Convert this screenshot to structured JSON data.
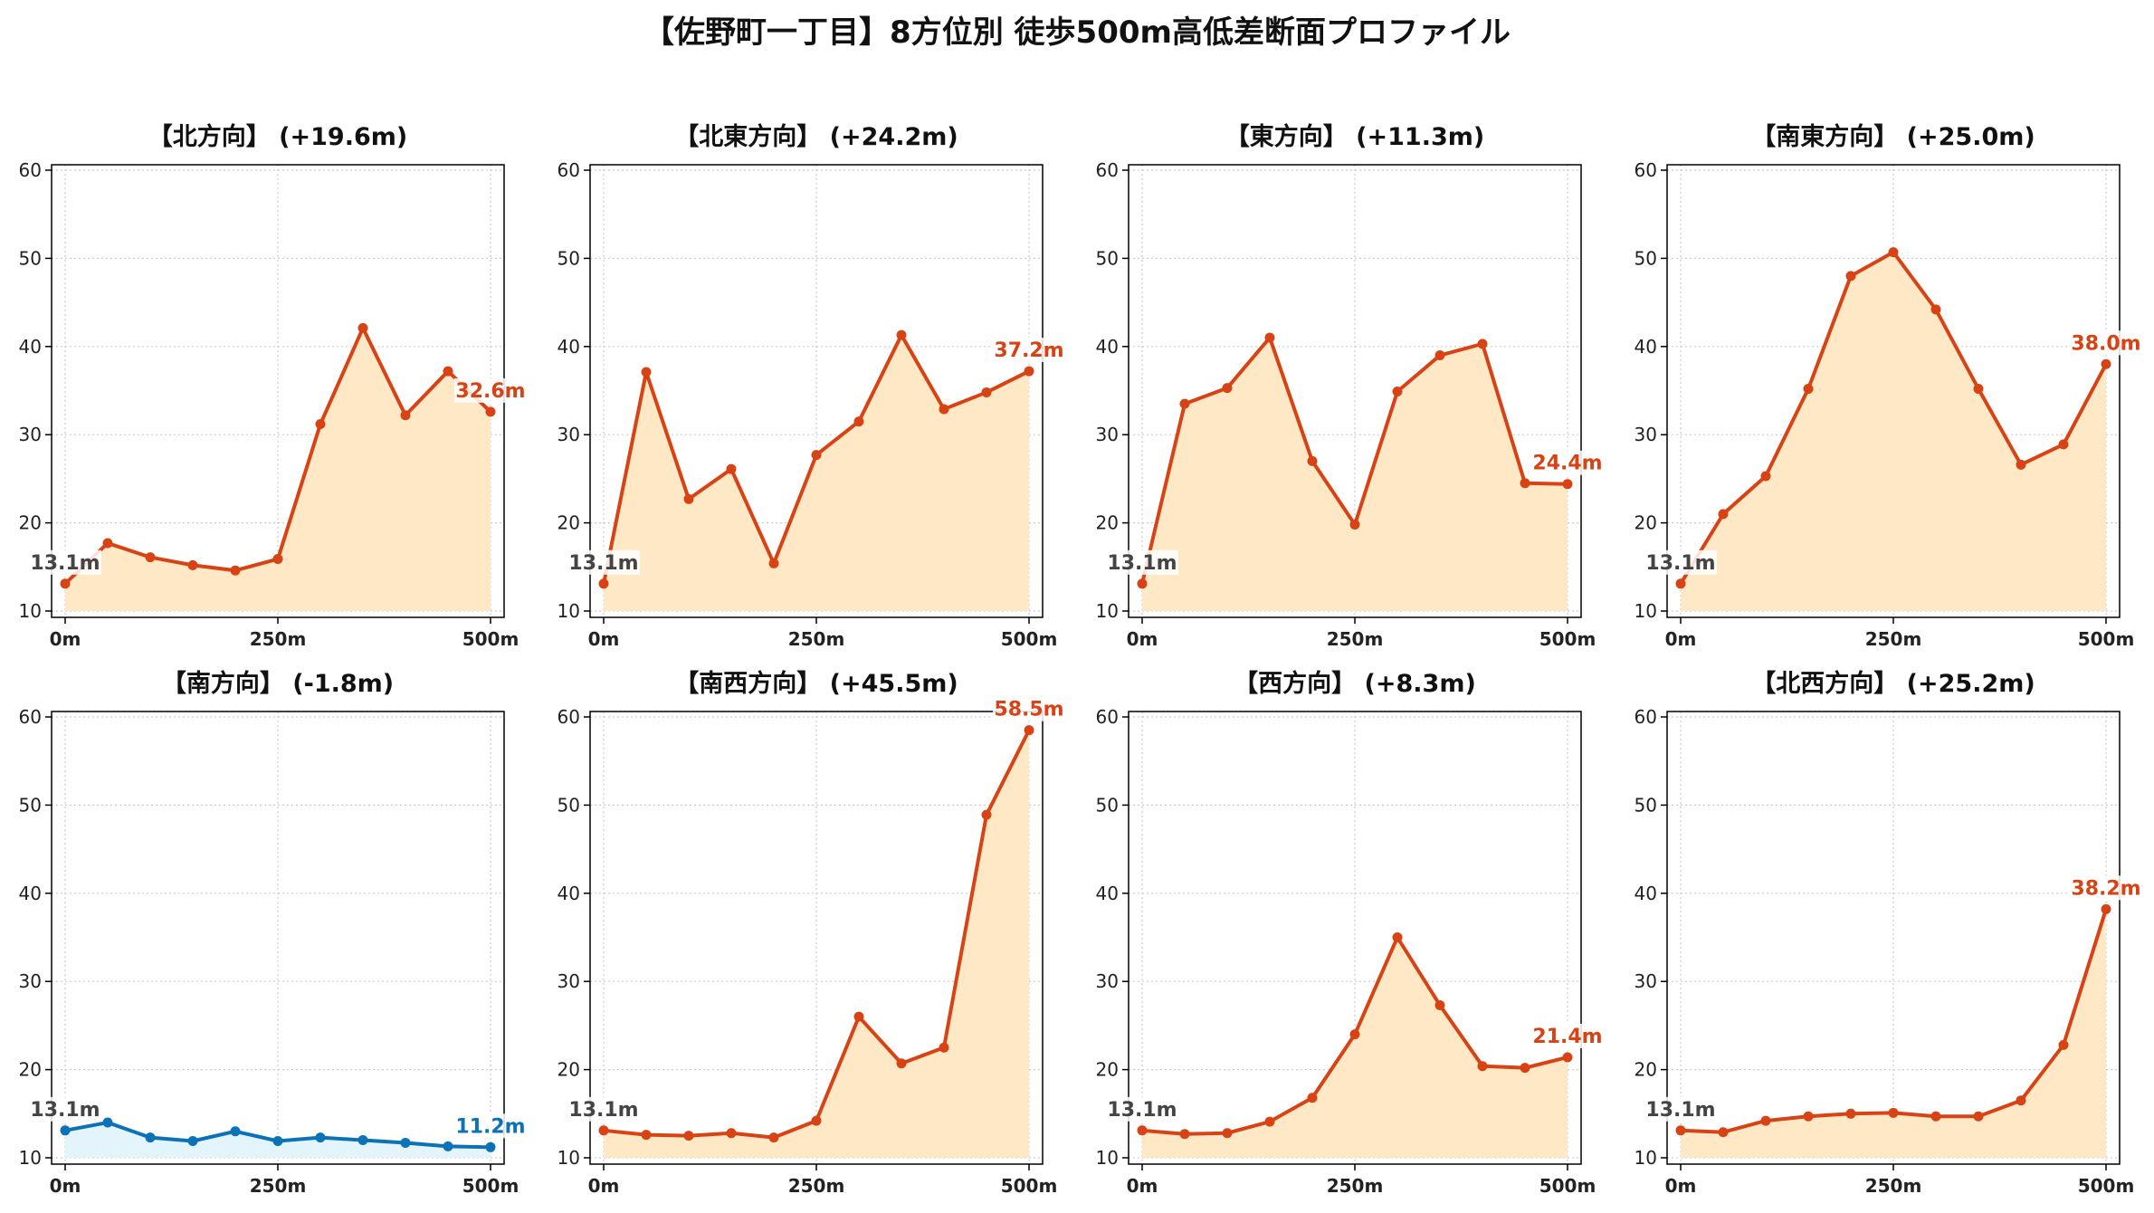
{
  "title": "【佐野町一丁目】8方位別 徒歩500m高低差断面プロファイル",
  "colors": {
    "rise_line": "#d84315",
    "rise_fill": "#ffe8c6",
    "fall_line": "#0c72b7",
    "fall_fill": "#e3f4fb",
    "start_label": "#444444",
    "grid": "#cccccc"
  },
  "chart_data": [
    {
      "type": "line",
      "title": "【北方向】 (+19.6m)",
      "x": [
        0,
        50,
        100,
        150,
        200,
        250,
        300,
        350,
        400,
        450,
        500
      ],
      "y": [
        13.1,
        17.7,
        16.1,
        15.2,
        14.6,
        15.9,
        31.2,
        42.1,
        32.2,
        37.2,
        32.6
      ],
      "start_label": "13.1m",
      "end_label": "32.6m",
      "trend": "rise",
      "xticks": [
        "0m",
        "250m",
        "500m"
      ],
      "yticks": [
        10,
        20,
        30,
        40,
        50,
        60
      ],
      "ylim": [
        10,
        60
      ],
      "xlim": [
        0,
        500
      ],
      "grid": true,
      "fill": true
    },
    {
      "type": "line",
      "title": "【北東方向】 (+24.2m)",
      "x": [
        0,
        50,
        100,
        150,
        200,
        250,
        300,
        350,
        400,
        450,
        500
      ],
      "y": [
        13.1,
        37.1,
        22.7,
        26.1,
        15.4,
        27.7,
        31.5,
        41.3,
        32.9,
        34.8,
        37.2
      ],
      "start_label": "13.1m",
      "end_label": "37.2m",
      "trend": "rise",
      "xticks": [
        "0m",
        "250m",
        "500m"
      ],
      "yticks": [
        10,
        20,
        30,
        40,
        50,
        60
      ],
      "ylim": [
        10,
        60
      ],
      "xlim": [
        0,
        500
      ],
      "grid": true,
      "fill": true
    },
    {
      "type": "line",
      "title": "【東方向】 (+11.3m)",
      "x": [
        0,
        50,
        100,
        150,
        200,
        250,
        300,
        350,
        400,
        450,
        500
      ],
      "y": [
        13.1,
        33.5,
        35.3,
        41.0,
        27.0,
        19.8,
        34.9,
        39.0,
        40.3,
        24.5,
        24.4
      ],
      "start_label": "13.1m",
      "end_label": "24.4m",
      "trend": "rise",
      "xticks": [
        "0m",
        "250m",
        "500m"
      ],
      "yticks": [
        10,
        20,
        30,
        40,
        50,
        60
      ],
      "ylim": [
        10,
        60
      ],
      "xlim": [
        0,
        500
      ],
      "grid": true,
      "fill": true
    },
    {
      "type": "line",
      "title": "【南東方向】 (+25.0m)",
      "x": [
        0,
        50,
        100,
        150,
        200,
        250,
        300,
        350,
        400,
        450,
        500
      ],
      "y": [
        13.1,
        21.0,
        25.3,
        35.2,
        48.0,
        50.7,
        44.2,
        35.2,
        26.6,
        28.9,
        38.0
      ],
      "start_label": "13.1m",
      "end_label": "38.0m",
      "trend": "rise",
      "xticks": [
        "0m",
        "250m",
        "500m"
      ],
      "yticks": [
        10,
        20,
        30,
        40,
        50,
        60
      ],
      "ylim": [
        10,
        60
      ],
      "xlim": [
        0,
        500
      ],
      "grid": true,
      "fill": true
    },
    {
      "type": "line",
      "title": "【南方向】 (-1.8m)",
      "x": [
        0,
        50,
        100,
        150,
        200,
        250,
        300,
        350,
        400,
        450,
        500
      ],
      "y": [
        13.1,
        14.0,
        12.3,
        11.9,
        13.0,
        11.9,
        12.3,
        12.0,
        11.7,
        11.3,
        11.2
      ],
      "start_label": "13.1m",
      "end_label": "11.2m",
      "trend": "fall",
      "xticks": [
        "0m",
        "250m",
        "500m"
      ],
      "yticks": [
        10,
        20,
        30,
        40,
        50,
        60
      ],
      "ylim": [
        10,
        60
      ],
      "xlim": [
        0,
        500
      ],
      "grid": true,
      "fill": true
    },
    {
      "type": "line",
      "title": "【南西方向】 (+45.5m)",
      "x": [
        0,
        50,
        100,
        150,
        200,
        250,
        300,
        350,
        400,
        450,
        500
      ],
      "y": [
        13.1,
        12.6,
        12.5,
        12.8,
        12.3,
        14.2,
        26.0,
        20.7,
        22.5,
        48.9,
        58.5
      ],
      "start_label": "13.1m",
      "end_label": "58.5m",
      "trend": "rise",
      "xticks": [
        "0m",
        "250m",
        "500m"
      ],
      "yticks": [
        10,
        20,
        30,
        40,
        50,
        60
      ],
      "ylim": [
        10,
        60
      ],
      "xlim": [
        0,
        500
      ],
      "grid": true,
      "fill": true
    },
    {
      "type": "line",
      "title": "【西方向】 (+8.3m)",
      "x": [
        0,
        50,
        100,
        150,
        200,
        250,
        300,
        350,
        400,
        450,
        500
      ],
      "y": [
        13.1,
        12.7,
        12.8,
        14.1,
        16.8,
        24.0,
        35.0,
        27.3,
        20.4,
        20.2,
        21.4
      ],
      "start_label": "13.1m",
      "end_label": "21.4m",
      "trend": "rise",
      "xticks": [
        "0m",
        "250m",
        "500m"
      ],
      "yticks": [
        10,
        20,
        30,
        40,
        50,
        60
      ],
      "ylim": [
        10,
        60
      ],
      "xlim": [
        0,
        500
      ],
      "grid": true,
      "fill": true
    },
    {
      "type": "line",
      "title": "【北西方向】 (+25.2m)",
      "x": [
        0,
        50,
        100,
        150,
        200,
        250,
        300,
        350,
        400,
        450,
        500
      ],
      "y": [
        13.1,
        12.9,
        14.2,
        14.7,
        15.0,
        15.1,
        14.7,
        14.7,
        16.5,
        22.8,
        38.2
      ],
      "start_label": "13.1m",
      "end_label": "38.2m",
      "trend": "rise",
      "xticks": [
        "0m",
        "250m",
        "500m"
      ],
      "yticks": [
        10,
        20,
        30,
        40,
        50,
        60
      ],
      "ylim": [
        10,
        60
      ],
      "xlim": [
        0,
        500
      ],
      "grid": true,
      "fill": true
    }
  ]
}
